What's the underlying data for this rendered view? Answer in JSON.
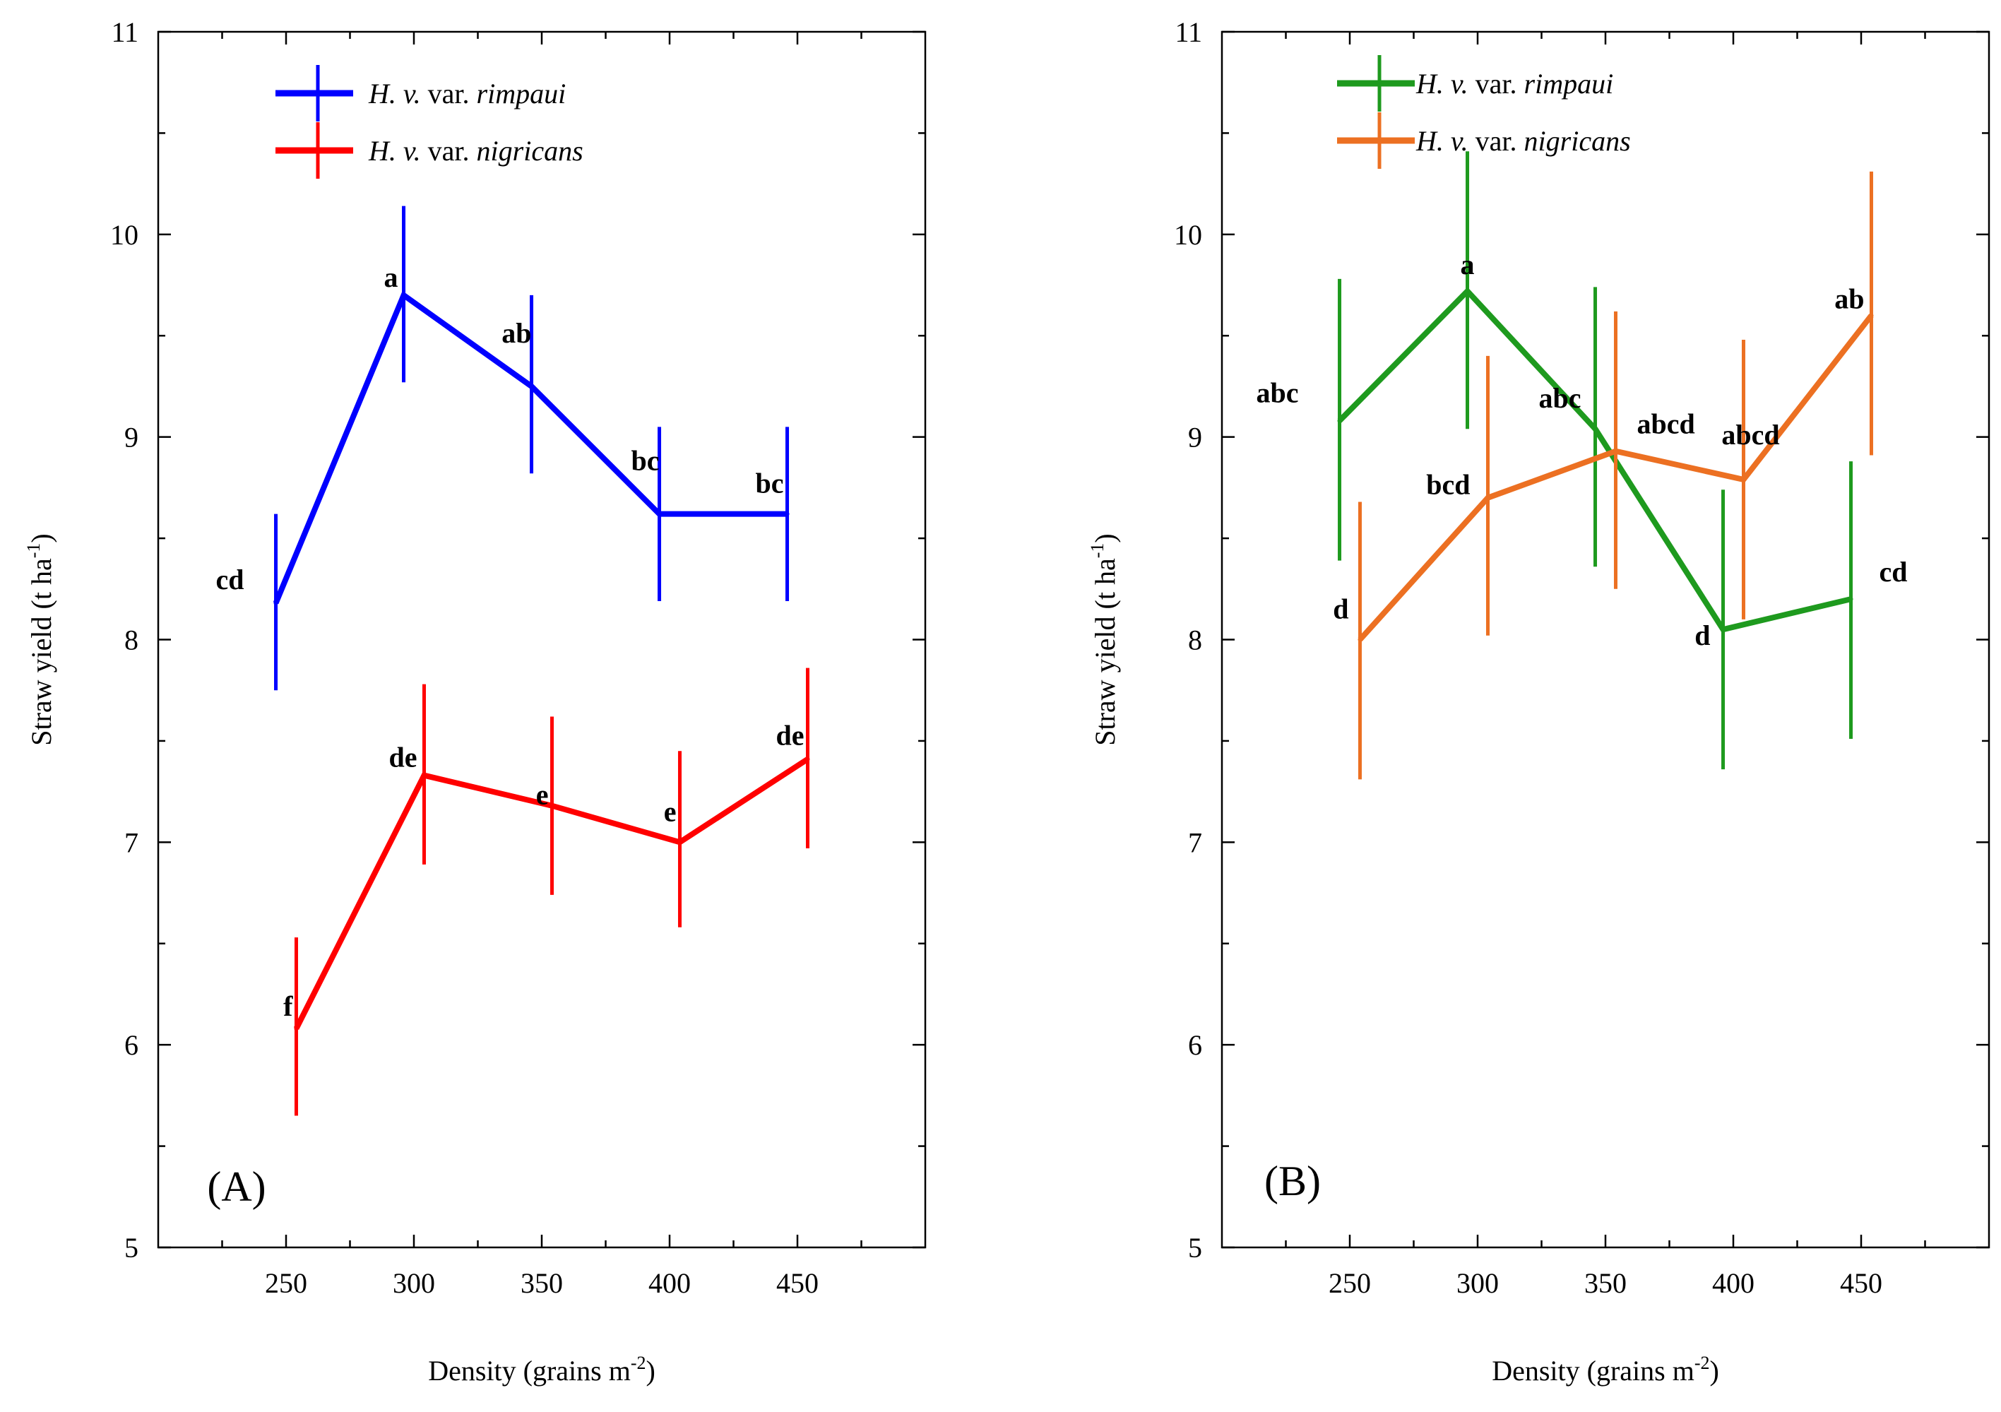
{
  "chart_data": [
    {
      "type": "line",
      "panel": "(A)",
      "xlabel": "Density (grains m",
      "xlabel_sup": "-2",
      "xlabel_end": ")",
      "ylabel": "Straw yield (t ha",
      "ylabel_sup": "-1",
      "ylabel_end": ")",
      "xlim": [
        200,
        500
      ],
      "ylim": [
        5,
        11
      ],
      "x_ticks": [
        250,
        300,
        350,
        400,
        450
      ],
      "y_ticks": [
        5,
        6,
        7,
        8,
        9,
        10,
        11
      ],
      "series": [
        {
          "name_prefix": "H. v.",
          "name_mid": " var. ",
          "name_suffix": "rimpaui",
          "color": "#0000ff",
          "x": [
            246,
            296,
            346,
            396,
            446
          ],
          "y": [
            8.18,
            9.7,
            9.25,
            8.62,
            8.62
          ],
          "err_low": [
            7.75,
            9.27,
            8.82,
            8.19,
            8.19
          ],
          "err_high": [
            8.62,
            10.14,
            9.7,
            9.05,
            9.05
          ],
          "labels": [
            "cd",
            "a",
            "ab",
            "bc",
            "bc"
          ]
        },
        {
          "name_prefix": "H. v.",
          "name_mid": " var. ",
          "name_suffix": "nigricans",
          "color": "#ff0000",
          "x": [
            254,
            304,
            354,
            404,
            454
          ],
          "y": [
            6.08,
            7.33,
            7.18,
            7.0,
            7.41
          ],
          "err_low": [
            5.65,
            6.89,
            6.74,
            6.58,
            6.97
          ],
          "err_high": [
            6.53,
            7.78,
            7.62,
            7.45,
            7.86
          ],
          "labels": [
            "f",
            "de",
            "e",
            "e",
            "de"
          ]
        }
      ]
    },
    {
      "type": "line",
      "panel": "(B)",
      "xlabel": "Density (grains m",
      "xlabel_sup": "-2",
      "xlabel_end": ")",
      "ylabel": "Straw yield (t ha",
      "ylabel_sup": "-1",
      "ylabel_end": ")",
      "xlim": [
        200,
        500
      ],
      "ylim": [
        5,
        11
      ],
      "x_ticks": [
        250,
        300,
        350,
        400,
        450
      ],
      "y_ticks": [
        5,
        6,
        7,
        8,
        9,
        10,
        11
      ],
      "series": [
        {
          "name_prefix": "H. v.",
          "name_mid": " var. ",
          "name_suffix": "rimpaui",
          "color": "#1e9a1e",
          "x": [
            246,
            296,
            346,
            396,
            446
          ],
          "y": [
            9.08,
            9.72,
            9.04,
            8.05,
            8.2
          ],
          "err_low": [
            8.39,
            9.04,
            8.36,
            7.36,
            7.51
          ],
          "err_high": [
            9.78,
            10.41,
            9.74,
            8.74,
            8.88
          ],
          "labels": [
            "abc",
            "a",
            "abc",
            "d",
            "cd"
          ]
        },
        {
          "name_prefix": "H. v.",
          "name_mid": " var. ",
          "name_suffix": "nigricans",
          "color": "#ec7022",
          "x": [
            254,
            304,
            354,
            404,
            454
          ],
          "y": [
            8.0,
            8.7,
            8.93,
            8.79,
            9.6
          ],
          "err_low": [
            7.31,
            8.02,
            8.25,
            8.1,
            8.91
          ],
          "err_high": [
            8.68,
            9.4,
            9.62,
            9.48,
            10.31
          ],
          "labels": [
            "d",
            "bcd",
            "abcd",
            "abcd",
            "ab"
          ]
        }
      ]
    }
  ]
}
